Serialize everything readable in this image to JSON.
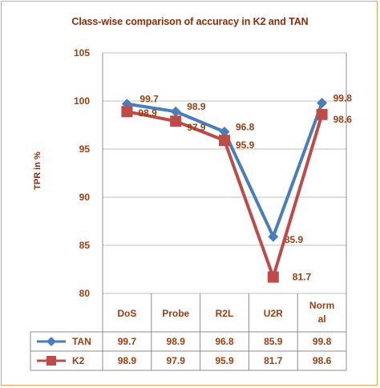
{
  "chart_data": {
    "type": "line",
    "title": "Class-wise comparison of accuracy in K2 and TAN",
    "ylabel": "TPR in %",
    "xlabel": "",
    "categories": [
      "DoS",
      "Probe",
      "R2L",
      "U2R",
      "Normal"
    ],
    "category_labels": [
      [
        "DoS"
      ],
      [
        "Probe"
      ],
      [
        "R2L"
      ],
      [
        "U2R"
      ],
      [
        "Norm",
        "al"
      ]
    ],
    "ylim": [
      80,
      105
    ],
    "yticks": [
      80,
      85,
      90,
      95,
      100,
      105
    ],
    "grid": true,
    "legend": "data-table",
    "series": [
      {
        "name": "TAN",
        "color": "#4a7ebb",
        "marker": "diamond",
        "values": [
          99.7,
          98.9,
          96.8,
          85.9,
          99.8
        ]
      },
      {
        "name": "K2",
        "color": "#be4b48",
        "marker": "square",
        "values": [
          98.9,
          97.9,
          95.9,
          81.7,
          98.6
        ]
      }
    ]
  }
}
